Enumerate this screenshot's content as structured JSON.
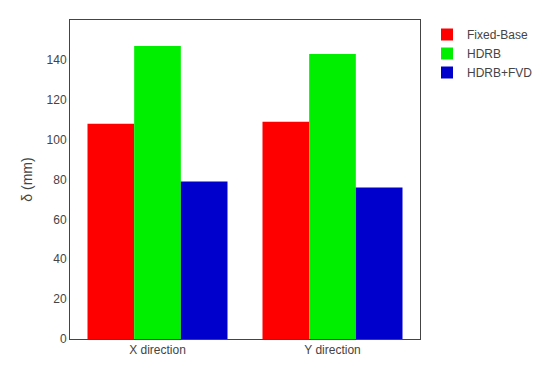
{
  "chart_data": {
    "type": "bar",
    "categories": [
      "X direction",
      "Y direction"
    ],
    "series": [
      {
        "name": "Fixed-Base",
        "color": "#FF0000",
        "values": [
          108,
          109
        ]
      },
      {
        "name": "HDRB",
        "color": "#00EE00",
        "values": [
          147,
          143
        ]
      },
      {
        "name": "HDRB+FVD",
        "color": "#0000CC",
        "values": [
          79,
          76
        ]
      }
    ],
    "ylabel": "δ (mm)",
    "ylim": [
      0,
      160
    ],
    "yticks": [
      0,
      20,
      40,
      60,
      80,
      100,
      120,
      140
    ],
    "grid": false,
    "legend": "upper right"
  }
}
